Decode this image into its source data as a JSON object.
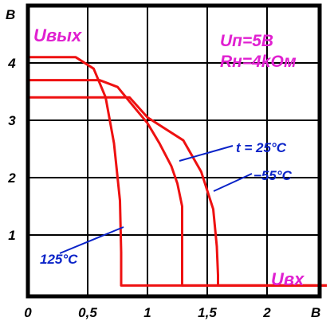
{
  "chart_data": {
    "type": "line",
    "y_axis_label": "Uвых",
    "x_axis_label": "Uвх",
    "y_unit": "В",
    "x_unit": "В",
    "conditions": {
      "supply": "Uп=5В",
      "load": "Rн=4kОм"
    },
    "x_ticks": [
      "0",
      "0,5",
      "1",
      "1,5",
      "2"
    ],
    "y_ticks": [
      "1",
      "2",
      "3",
      "4"
    ],
    "xlim": [
      0,
      2.5
    ],
    "ylim": [
      0,
      4.3
    ],
    "grid": true,
    "colors": {
      "curves": "#ee1111",
      "labels": "#0a23c8",
      "axis_titles": "#e020d0",
      "grid": "#000000"
    },
    "series": [
      {
        "name": "t = 25°C",
        "x": [
          0,
          0.6,
          0.75,
          0.9,
          1.0,
          1.1,
          1.2,
          1.25,
          1.29,
          1.29,
          2.5
        ],
        "y": [
          3.7,
          3.7,
          3.58,
          3.2,
          2.95,
          2.6,
          2.2,
          1.9,
          1.5,
          0.12,
          0.12
        ]
      },
      {
        "name": "−55°C",
        "x": [
          0,
          0.85,
          1.0,
          1.3,
          1.45,
          1.55,
          1.58,
          1.59,
          1.59,
          2.5
        ],
        "y": [
          3.4,
          3.4,
          3.05,
          2.65,
          2.1,
          1.45,
          0.8,
          0.3,
          0.12,
          0.12
        ]
      },
      {
        "name": "125°C",
        "x": [
          0,
          0.4,
          0.55,
          0.65,
          0.72,
          0.77,
          0.78,
          0.78,
          2.5
        ],
        "y": [
          4.1,
          4.1,
          3.9,
          3.4,
          2.6,
          1.6,
          0.7,
          0.12,
          0.12
        ]
      }
    ]
  }
}
